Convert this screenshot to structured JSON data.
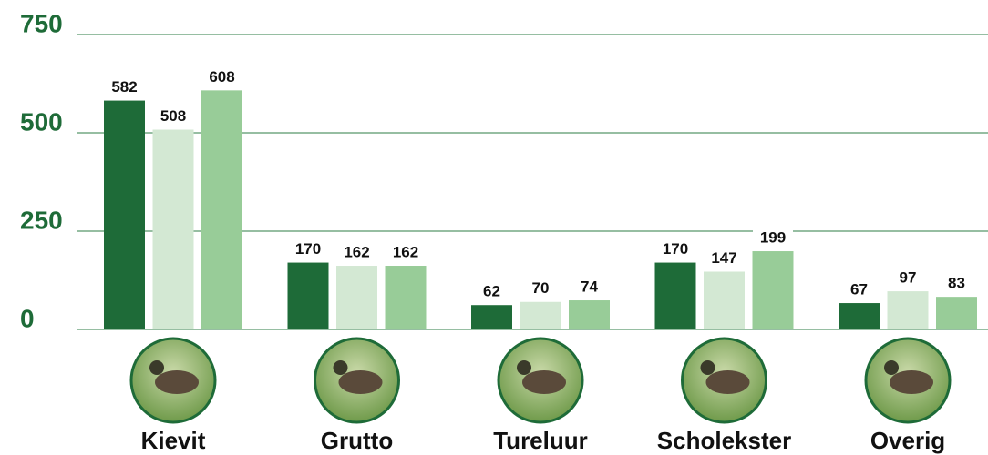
{
  "chart_data": {
    "type": "bar",
    "categories": [
      "Kievit",
      "Grutto",
      "Tureluur",
      "Scholekster",
      "Overig"
    ],
    "series": [
      {
        "color": "#1e6b38",
        "values": [
          582,
          170,
          62,
          170,
          67
        ]
      },
      {
        "color": "#d3e8d3",
        "values": [
          508,
          162,
          70,
          147,
          97
        ]
      },
      {
        "color": "#98cc98",
        "values": [
          608,
          162,
          74,
          199,
          83
        ]
      }
    ],
    "ylim": [
      0,
      750
    ],
    "yticks": [
      0,
      250,
      500,
      750
    ],
    "grid": true,
    "grid_color": "#2e7d46"
  }
}
